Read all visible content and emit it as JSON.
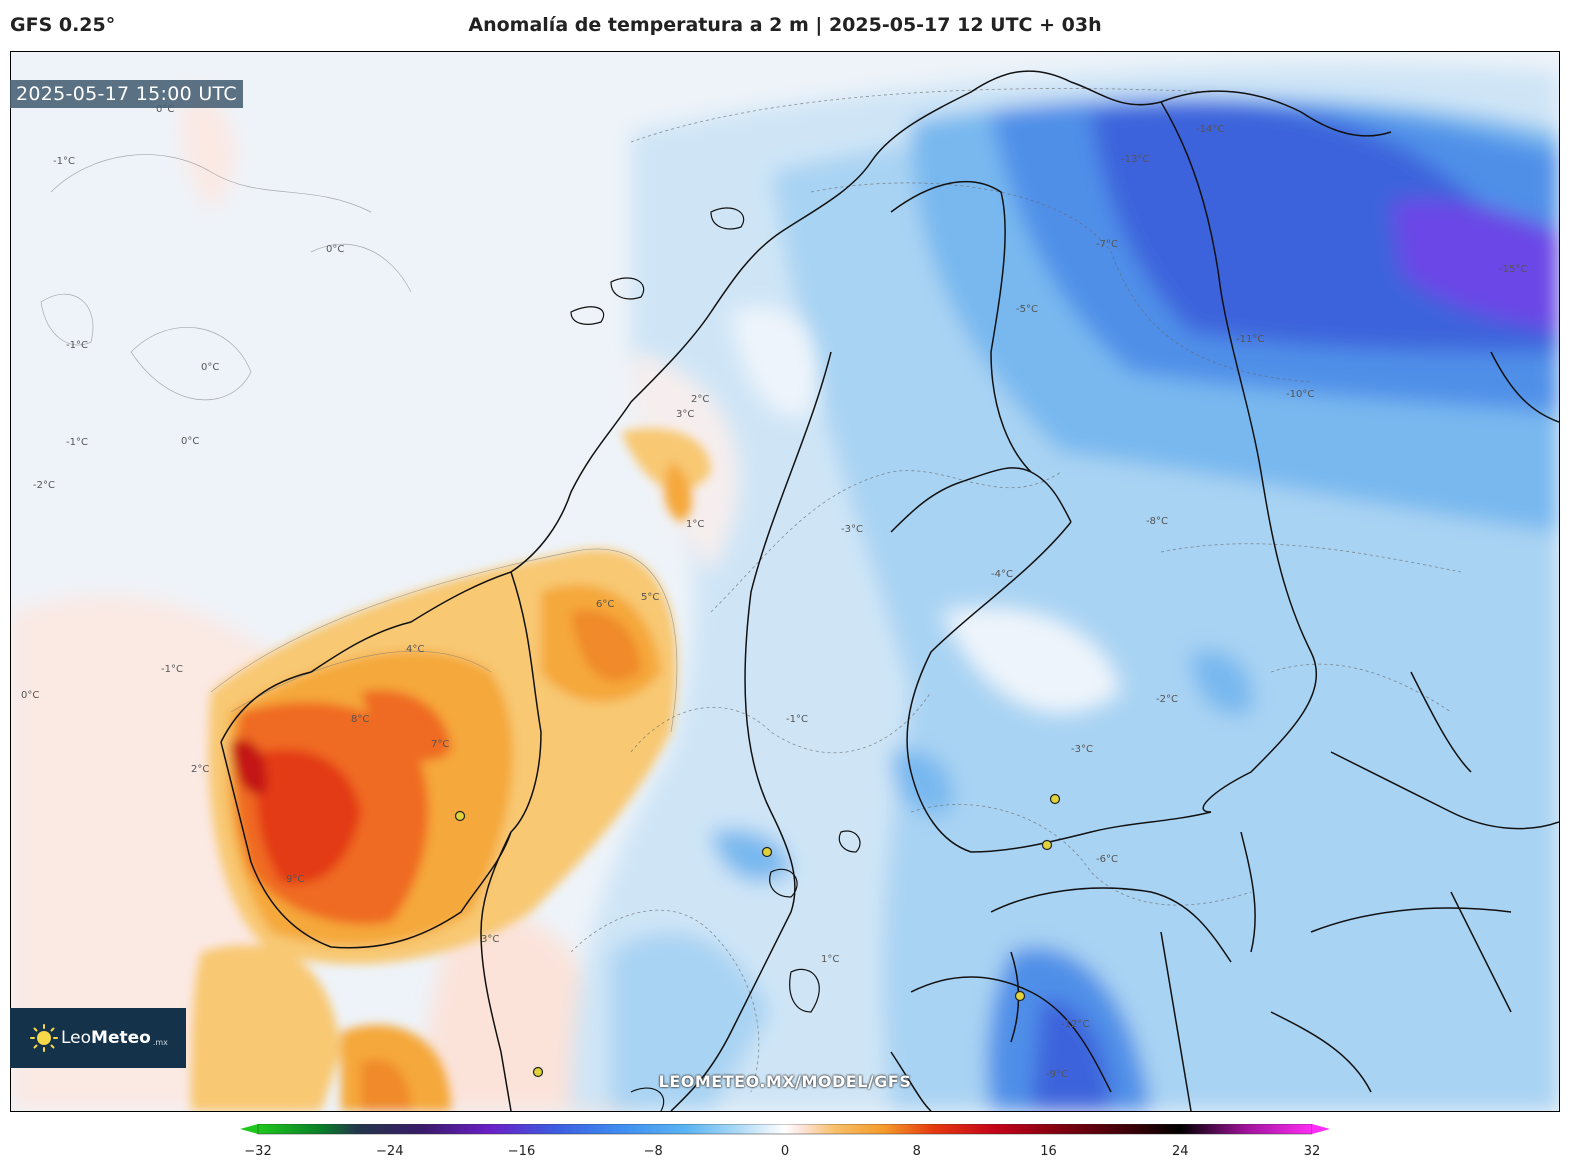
{
  "header": {
    "model": "GFS 0.25°",
    "title": "Anomalía de temperatura a 2 m | 2025-05-17 12 UTC + 03h"
  },
  "valid_time": "2025-05-17 15:00 UTC",
  "watermark": "LEOMETEO.MX/MODEL/GFS",
  "logo": {
    "brand_light": "Leo",
    "brand_bold": "Meteo",
    "tld": ".mx"
  },
  "colorbar": {
    "ticks": [
      "−32",
      "−24",
      "−16",
      "−8",
      "0",
      "8",
      "16",
      "24",
      "32"
    ],
    "min": -32,
    "max": 32,
    "stops": [
      {
        "v": -32,
        "c": "#1ec81e"
      },
      {
        "v": -28,
        "c": "#0a7a2a"
      },
      {
        "v": -26,
        "c": "#23364a"
      },
      {
        "v": -22,
        "c": "#3a1a6a"
      },
      {
        "v": -18,
        "c": "#6a1fc6"
      },
      {
        "v": -14,
        "c": "#3d5be0"
      },
      {
        "v": -10,
        "c": "#3f8df0"
      },
      {
        "v": -6,
        "c": "#5ab4f2"
      },
      {
        "v": -3,
        "c": "#a8d8f6"
      },
      {
        "v": -1,
        "c": "#e4f1fb"
      },
      {
        "v": 0,
        "c": "#ffffff"
      },
      {
        "v": 1,
        "c": "#fce4dc"
      },
      {
        "v": 3,
        "c": "#f7c06a"
      },
      {
        "v": 6,
        "c": "#f59a2a"
      },
      {
        "v": 9,
        "c": "#e53a10"
      },
      {
        "v": 13,
        "c": "#c00018"
      },
      {
        "v": 17,
        "c": "#7a0010"
      },
      {
        "v": 21,
        "c": "#3a0008"
      },
      {
        "v": 24,
        "c": "#000000"
      },
      {
        "v": 28,
        "c": "#a0139a"
      },
      {
        "v": 32,
        "c": "#ff2df5"
      }
    ]
  },
  "contour_labels": [
    "-1°C",
    "0°C",
    "0°C",
    "-1°C",
    "0°C",
    "0°C",
    "-2°C",
    "-1°C",
    "0°C",
    "-1°C",
    "2°C",
    "3°C",
    "4°C",
    "5°C",
    "6°C",
    "7°C",
    "8°C",
    "9°C",
    "2°C",
    "3°C",
    "1°C",
    "-3°C",
    "-4°C",
    "-5°C",
    "-6°C",
    "-7°C",
    "-9°C",
    "-10°C",
    "-11°C",
    "-13°C",
    "-14°C",
    "-15°C",
    "-12°C",
    "-8°C",
    "-1°C",
    "1°C",
    "-2°C",
    "-3°C"
  ]
}
